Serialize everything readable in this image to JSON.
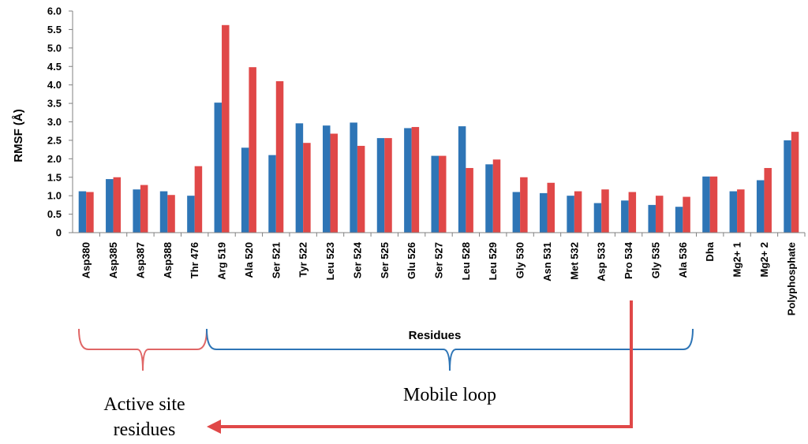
{
  "chart_data": {
    "type": "bar",
    "title": "",
    "xlabel": "Residues",
    "ylabel": "RMSF (Å)",
    "ylim": [
      0,
      6.0
    ],
    "yticks": [
      "0",
      "0.5",
      "1.0",
      "1.5",
      "2.0",
      "2.5",
      "3.0",
      "3.5",
      "4.0",
      "4.5",
      "5.0",
      "5.5",
      "6.0"
    ],
    "grid": false,
    "legend": "none",
    "categories": [
      "Asp380",
      "Asp385",
      "Asp387",
      "Asp388",
      "Thr 476",
      "Arg 519",
      "Ala 520",
      "Ser 521",
      "Tyr 522",
      "Leu 523",
      "Ser 524",
      "Ser 525",
      "Glu 526",
      "Ser 527",
      "Leu 528",
      "Leu 529",
      "Gly 530",
      "Asn 531",
      "Met 532",
      "Asp 533",
      "Pro 534",
      "Gly 535",
      "Ala 536",
      "Dha",
      "Mg2+ 1",
      "Mg2+ 2",
      "Polyphosphate"
    ],
    "series": [
      {
        "color": "#2E75B6",
        "values": [
          1.12,
          1.45,
          1.17,
          1.12,
          1.0,
          3.52,
          2.3,
          2.1,
          2.96,
          2.9,
          2.98,
          2.56,
          2.83,
          2.08,
          2.88,
          1.85,
          1.1,
          1.07,
          1.0,
          0.8,
          0.87,
          0.75,
          0.7,
          1.52,
          1.12,
          1.42,
          2.5
        ]
      },
      {
        "color": "#E04848",
        "values": [
          1.1,
          1.5,
          1.29,
          1.02,
          1.8,
          5.62,
          4.48,
          4.1,
          2.43,
          2.68,
          2.35,
          2.56,
          2.86,
          2.08,
          1.75,
          1.98,
          1.5,
          1.35,
          1.12,
          1.17,
          1.1,
          1.0,
          0.97,
          1.52,
          1.17,
          1.75,
          2.73
        ]
      }
    ],
    "annotations": {
      "active_site_label_line1": "Active site",
      "active_site_label_line2": "residues",
      "mobile_loop_label": "Mobile loop",
      "active_site_brace_color": "#E06666",
      "mobile_loop_brace_color": "#2E75B6",
      "arrow_color": "#E04848"
    }
  }
}
